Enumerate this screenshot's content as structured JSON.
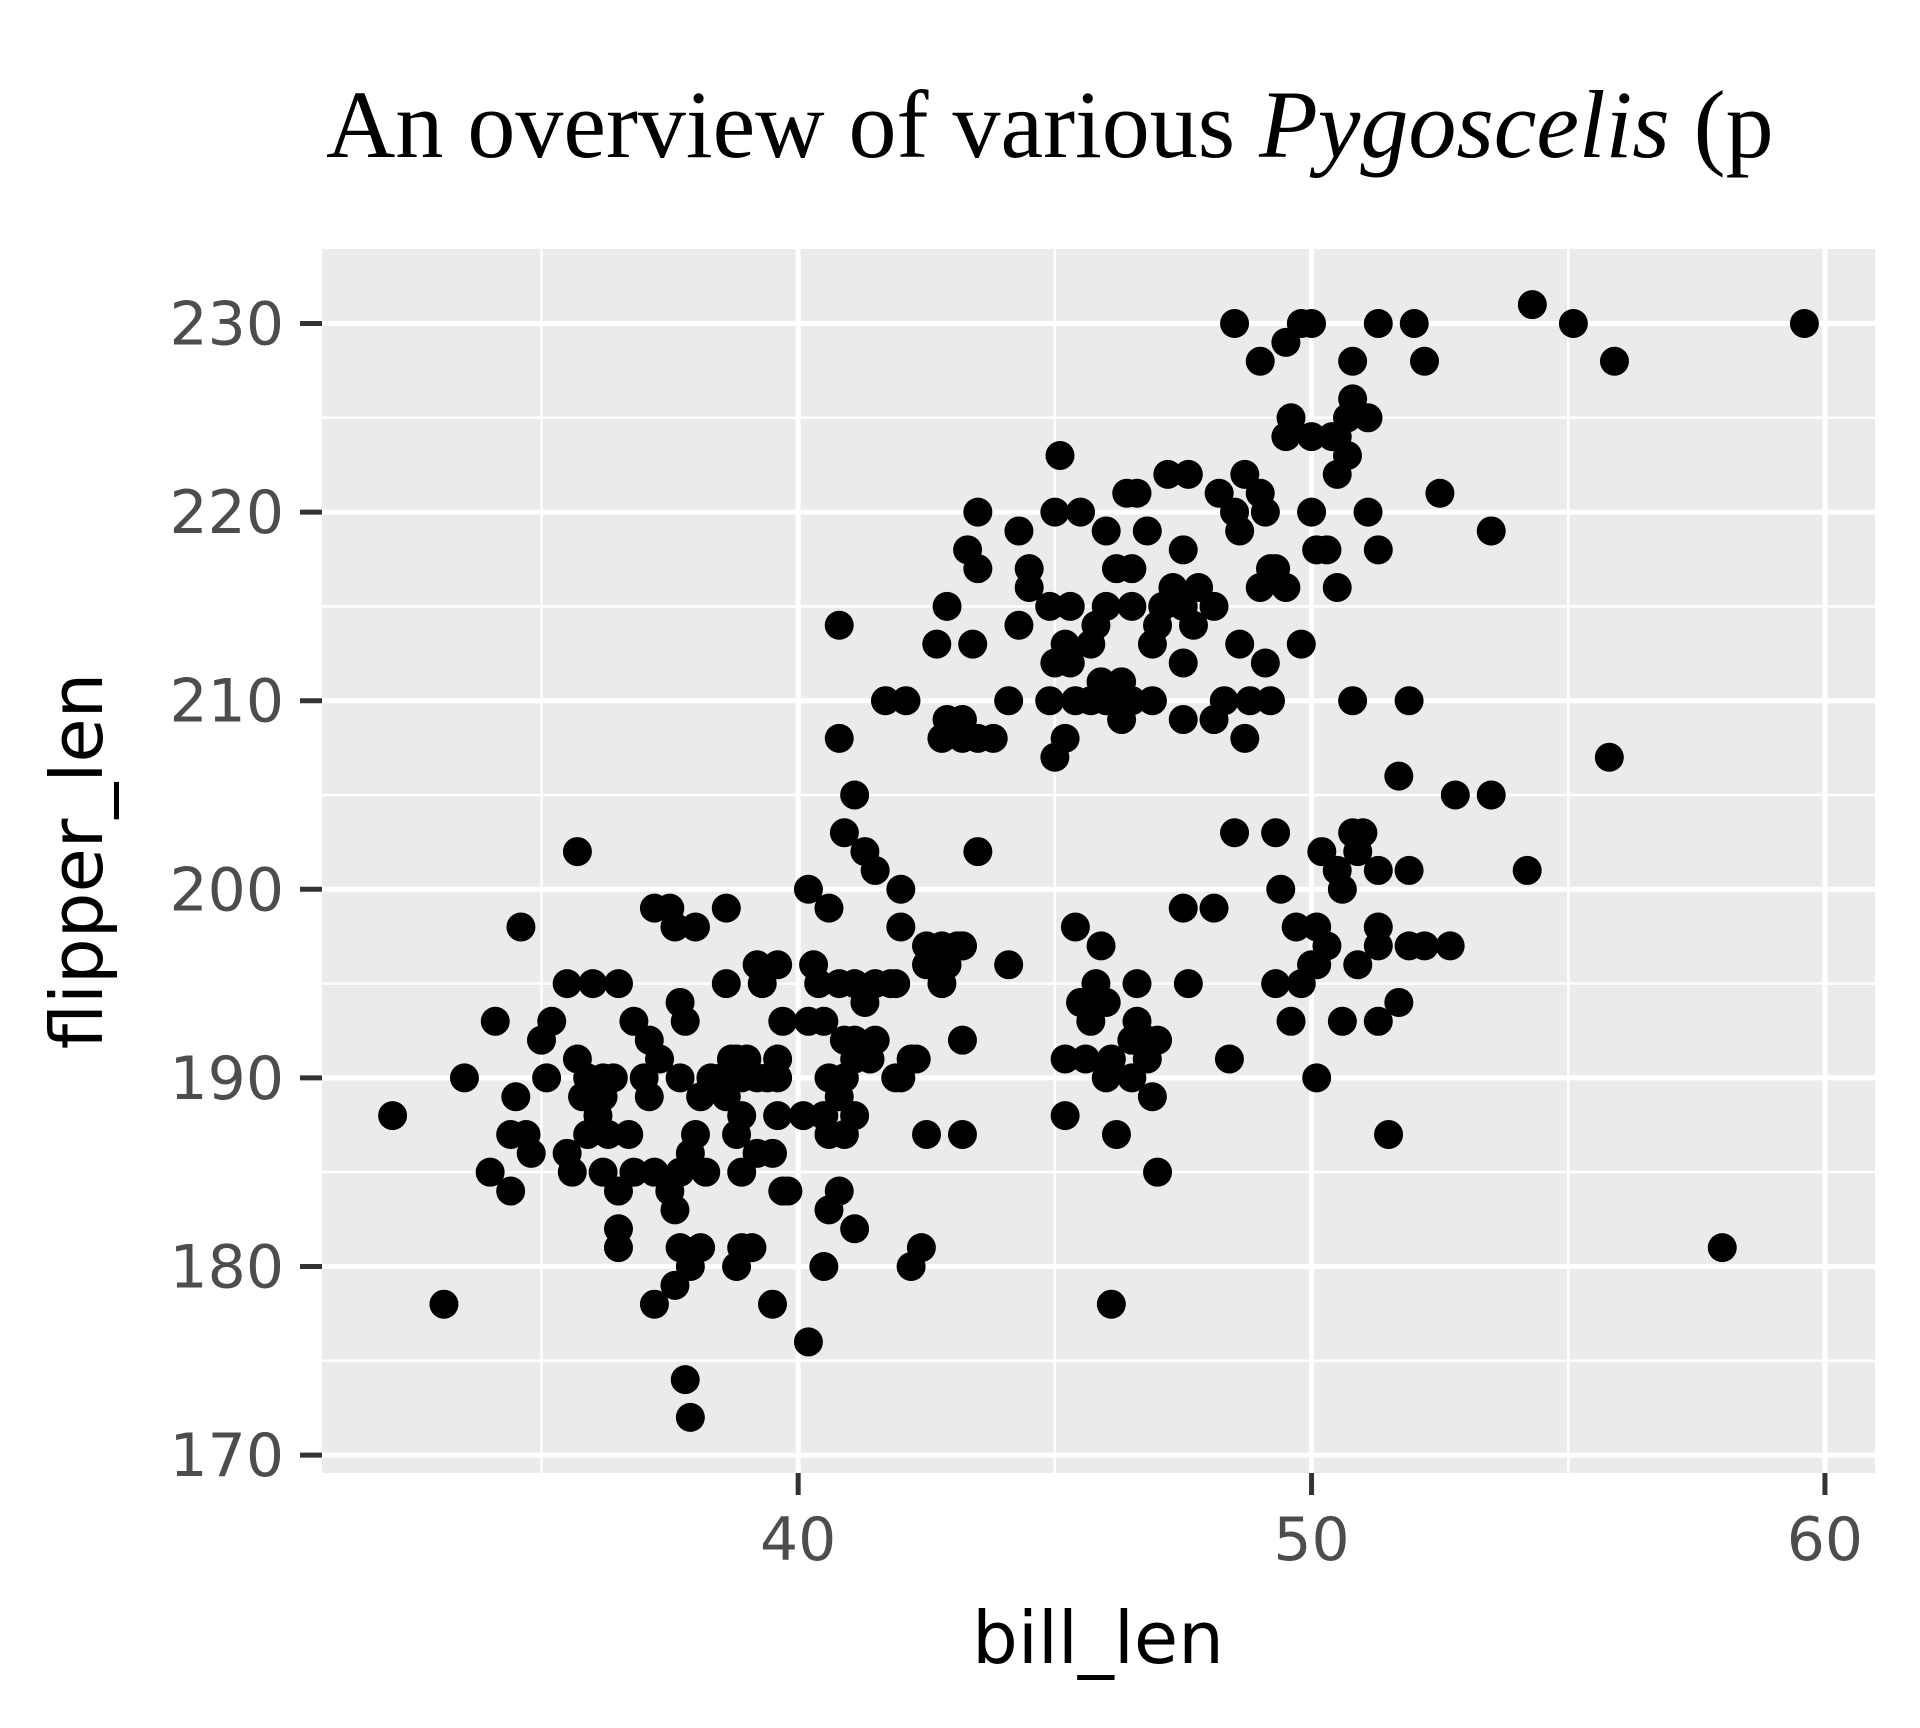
{
  "chart_data": {
    "type": "scatter",
    "title": "An overview of various ",
    "title_italic": "Pygoscelis",
    "title_tail": " (p",
    "xlabel": "bill_len",
    "ylabel": "flipper_len",
    "xlim": [
      30.725,
      60.975
    ],
    "ylim": [
      169.05,
      233.95
    ],
    "xticks": [
      40,
      50,
      60
    ],
    "yticks": [
      170,
      180,
      190,
      200,
      210,
      220,
      230
    ],
    "xminor": [
      35,
      45,
      55
    ],
    "yminor": [
      175,
      185,
      195,
      205,
      215,
      225
    ],
    "grid": true,
    "color": "#000000",
    "background": "#ebebeb",
    "x": [
      32.1,
      33.1,
      33.5,
      34.0,
      34.4,
      34.6,
      34.1,
      35.7,
      58.0,
      59.6,
      55.8,
      55.9,
      55.1,
      54.3,
      54.2,
      53.5,
      52.8,
      53.5,
      52.5,
      52.0,
      52.2,
      51.3,
      50.8,
      50.0,
      49.8,
      49.5,
      49.0,
      48.5,
      51.5,
      50.1,
      48.4,
      46.1,
      46.2,
      47.0,
      45.2,
      40.2,
      37.9,
      37.8,
      40.8,
      40.8,
      41.1,
      40.9,
      41.3,
      41.5,
      42.0,
      40.2,
      40.6,
      37.2,
      37.5,
      38.6,
      37.6,
      38.0,
      42.0,
      42.5,
      43.2,
      42.9,
      44.1,
      42.8,
      43.5,
      43.2,
      42.3,
      42.0,
      42.4,
      42.2,
      42.5,
      43.2,
      45.1,
      45.0,
      45.5,
      44.3,
      46.0,
      43.5,
      43.3,
      43.5,
      44.5,
      44.5,
      44.3,
      46.4,
      46.6,
      47.2,
      47.6,
      46.8,
      47.5,
      48.2,
      48.5,
      48.7,
      49.0,
      48.6,
      49.1,
      49.2,
      49.0,
      49.5,
      49.3,
      50.0,
      50.1,
      50.3,
      50.5,
      51.1,
      51.3,
      50.5,
      50.7,
      50.5,
      50.0,
      50.4,
      49.5,
      49.6,
      51.1,
      50.8,
      50.7,
      49.8,
      49.1,
      48.6,
      48.8,
      49.2,
      48.3,
      48.1,
      48.7,
      50.8,
      47.5,
      47.5,
      46.9,
      46.5,
      46.0,
      46.2,
      46.5,
      47.1,
      47.3,
      47.5,
      47.8,
      48.1,
      47.7,
      47.0,
      45.8,
      45.3,
      44.9,
      45.2,
      45.7,
      45.0,
      45.3,
      44.9,
      45.4,
      45.7,
      45.9,
      46.3,
      46.5,
      46.9,
      46.3,
      45.2,
      45.0,
      46.0,
      44.1,
      43.5,
      43.2,
      42.8,
      43.8,
      42.9,
      43.2,
      42.7,
      43.4,
      42.9,
      41.7,
      42.1,
      51.9,
      51.7,
      45.4,
      45.9,
      46.6,
      45.8,
      45.5,
      46.0,
      45.7,
      46.6,
      46.5,
      46.1,
      45.2,
      45.6,
      46.8,
      46.9,
      46.0,
      46.5,
      46.8,
      47.0,
      47.6,
      47.5,
      48.1,
      48.5,
      49.3,
      49.4,
      49.7,
      50.1,
      50.3,
      50.9,
      50.1,
      49.8,
      49.3,
      50.0,
      49.6,
      50.6,
      51.3,
      51.7,
      51.3,
      51.3,
      51.9,
      52.2,
      52.7,
      51.3,
      51.9,
      50.5,
      50.9,
      50.2,
      50.8,
      51.0,
      50.6,
      35.0,
      35.2,
      35.1,
      34.5,
      34.4,
      34.7,
      34.8,
      35.5,
      35.6,
      35.5,
      36.0,
      36.5,
      35.7,
      35.9,
      36.2,
      36.4,
      35.8,
      36.2,
      36.1,
      35.9,
      36.3,
      36.7,
      36.2,
      36.5,
      36.8,
      37.2,
      37.5,
      36.5,
      36.5,
      37.6,
      37.7,
      37.9,
      38.1,
      37.6,
      37.2,
      37.0,
      37.1,
      37.7,
      38.1,
      38.0,
      37.9,
      37.7,
      38.2,
      36.8,
      37.1,
      37.3,
      37.7,
      37.8,
      38.6,
      38.7,
      38.9,
      38.5,
      39.2,
      39.4,
      39.6,
      39.6,
      38.8,
      39.0,
      38.9,
      38.6,
      38.3,
      38.8,
      38.9,
      39.2,
      39.5,
      39.7,
      39.8,
      38.9,
      39.1,
      38.8,
      39.5,
      39.6,
      40.1,
      39.7,
      40.2,
      40.5,
      39.3,
      39.2,
      39.6,
      40.3,
      40.4,
      40.8,
      41.1,
      41.5,
      41.8,
      41.3,
      40.9,
      41.1,
      41.5,
      40.6,
      40.9,
      41.1,
      41.4,
      40.8,
      41.1,
      40.9,
      40.6,
      40.8,
      40.6,
      41.1,
      40.5,
      41.9,
      42.2,
      41.9,
      42.5,
      42.8,
      43.1,
      43.2,
      40.5
    ],
    "values": [
      188,
      178,
      190,
      185,
      184,
      198,
      193,
      202,
      181,
      230,
      207,
      228,
      230,
      231,
      201,
      205,
      205,
      219,
      221,
      230,
      228,
      230,
      228,
      230,
      230,
      229,
      228,
      230,
      187,
      190,
      191,
      178,
      187,
      185,
      188,
      176,
      172,
      174,
      214,
      208,
      205,
      203,
      202,
      201,
      200,
      200,
      199,
      199,
      199,
      199,
      198,
      198,
      198,
      197,
      197,
      196,
      196,
      195,
      202,
      192,
      191,
      190,
      181,
      180,
      187,
      187,
      223,
      220,
      220,
      219,
      219,
      220,
      218,
      217,
      217,
      216,
      214,
      221,
      221,
      222,
      222,
      219,
      218,
      221,
      220,
      222,
      221,
      219,
      220,
      217,
      216,
      216,
      217,
      220,
      218,
      218,
      216,
      220,
      218,
      222,
      223,
      224,
      224,
      224,
      224,
      225,
      225,
      226,
      225,
      213,
      212,
      213,
      210,
      210,
      210,
      209,
      208,
      210,
      212,
      209,
      213,
      215,
      215,
      217,
      217,
      215,
      216,
      215,
      216,
      215,
      214,
      214,
      214,
      215,
      215,
      213,
      213,
      212,
      212,
      210,
      210,
      210,
      211,
      211,
      210,
      210,
      209,
      208,
      207,
      210,
      210,
      208,
      208,
      208,
      208,
      209,
      209,
      213,
      213,
      215,
      210,
      210,
      210,
      206,
      198,
      197,
      195,
      195,
      194,
      194,
      193,
      193,
      192,
      191,
      191,
      191,
      192,
      189,
      190,
      190,
      191,
      192,
      195,
      199,
      199,
      203,
      203,
      200,
      198,
      198,
      197,
      196,
      196,
      195,
      195,
      196,
      193,
      193,
      193,
      194,
      198,
      197,
      197,
      197,
      197,
      201,
      201,
      201,
      202,
      202,
      203,
      203,
      200,
      192,
      193,
      190,
      189,
      187,
      187,
      186,
      186,
      185,
      195,
      195,
      195,
      191,
      190,
      190,
      190,
      189,
      189,
      188,
      187,
      187,
      187,
      185,
      184,
      185,
      185,
      184,
      182,
      181,
      183,
      181,
      180,
      181,
      179,
      178,
      190,
      189,
      190,
      189,
      187,
      186,
      185,
      185,
      193,
      192,
      191,
      194,
      193,
      195,
      191,
      190,
      190,
      190,
      190,
      190,
      191,
      191,
      191,
      188,
      189,
      190,
      187,
      185,
      186,
      186,
      184,
      184,
      181,
      181,
      180,
      178,
      188,
      188,
      193,
      193,
      193,
      195,
      196,
      196,
      196,
      195,
      195,
      195,
      195,
      195,
      194,
      192,
      192,
      192,
      190,
      190,
      191,
      191,
      189,
      188,
      187,
      187,
      184,
      183,
      182,
      180,
      190,
      191,
      195,
      196,
      197,
      197,
      197,
      188
    ]
  }
}
